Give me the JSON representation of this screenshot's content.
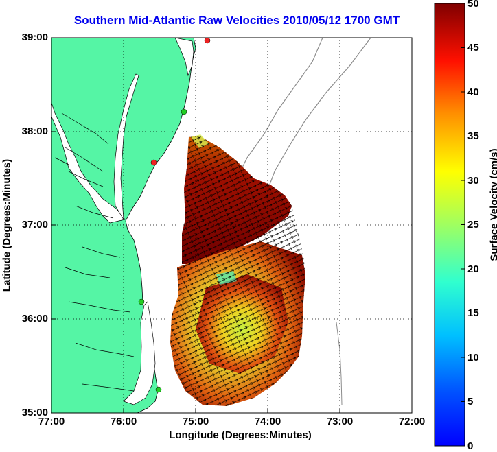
{
  "title": "Southern Mid-Atlantic Raw Velocities 2010/05/12 1700 GMT",
  "xaxis": {
    "label": "Longitude (Degrees:Minutes)",
    "ticks": [
      "77:00",
      "76:00",
      "75:00",
      "74:00",
      "73:00",
      "72:00"
    ]
  },
  "yaxis": {
    "label": "Latitude (Degrees:Minutes)",
    "ticks": [
      "39:00",
      "38:00",
      "37:00",
      "36:00",
      "35:00"
    ]
  },
  "colorbar": {
    "label": "Surface Velocity (cm/s)",
    "ticks": [
      "50",
      "45",
      "40",
      "35",
      "30",
      "25",
      "20",
      "15",
      "10",
      "5",
      "0"
    ],
    "range": [
      0,
      50
    ],
    "colormap": "jet"
  },
  "colors": {
    "land": "#55f5a5",
    "title": "#0000ee",
    "coastline": "#000000",
    "bathymetry": "#8c8c8c",
    "station_green": "#22cc22",
    "station_red": "#ee2222"
  },
  "map": {
    "lon_range": [
      -77,
      -72
    ],
    "lat_range": [
      35,
      39
    ],
    "grid": "dotted",
    "stations": [
      {
        "lon": -74.87,
        "lat": 38.97,
        "status": "red"
      },
      {
        "lon": -75.09,
        "lat": 38.2,
        "status": "green"
      },
      {
        "lon": -75.55,
        "lat": 37.7,
        "status": "red"
      },
      {
        "lon": -75.73,
        "lat": 36.18,
        "status": "green"
      },
      {
        "lon": -75.47,
        "lat": 35.25,
        "status": "green"
      }
    ]
  }
}
